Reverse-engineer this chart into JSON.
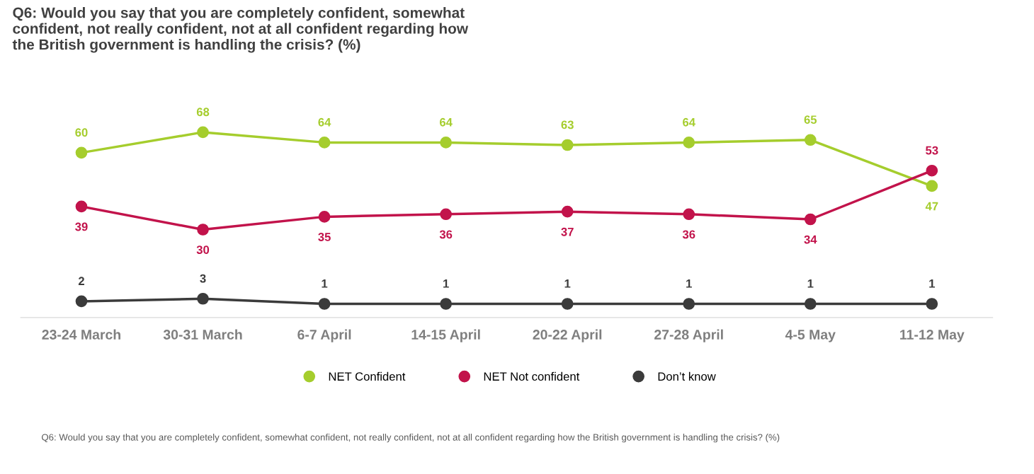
{
  "chart_data": {
    "type": "line",
    "title": "Q6: Would you say that you are completely confident, somewhat\nconfident, not really confident, not at all confident regarding how\nthe British government is handling the crisis? (%)",
    "categories": [
      "23-24 March",
      "30-31 March",
      "6-7 April",
      "14-15 April",
      "20-22 April",
      "27-28 April",
      "4-5 May",
      "11-12 May"
    ],
    "series": [
      {
        "name": "NET Confident",
        "color": "#a5cd2d",
        "values": [
          60,
          68,
          64,
          64,
          63,
          64,
          65,
          47
        ]
      },
      {
        "name": "NET Not confident",
        "color": "#c2134b",
        "values": [
          39,
          30,
          35,
          36,
          37,
          36,
          34,
          53
        ]
      },
      {
        "name": "Don’t know",
        "color": "#3b3b3b",
        "values": [
          2,
          3,
          1,
          1,
          1,
          1,
          1,
          1
        ]
      }
    ],
    "data_labels": true,
    "marker": "circle",
    "line_style": "solid",
    "grid": false,
    "legend": "bottom",
    "tick_labels": "x",
    "annotations": [
      "Q6: Would you say that you are completely confident, somewhat confident, not really confident, not at all confident regarding how the British government is handling the crisis? (%)"
    ]
  }
}
